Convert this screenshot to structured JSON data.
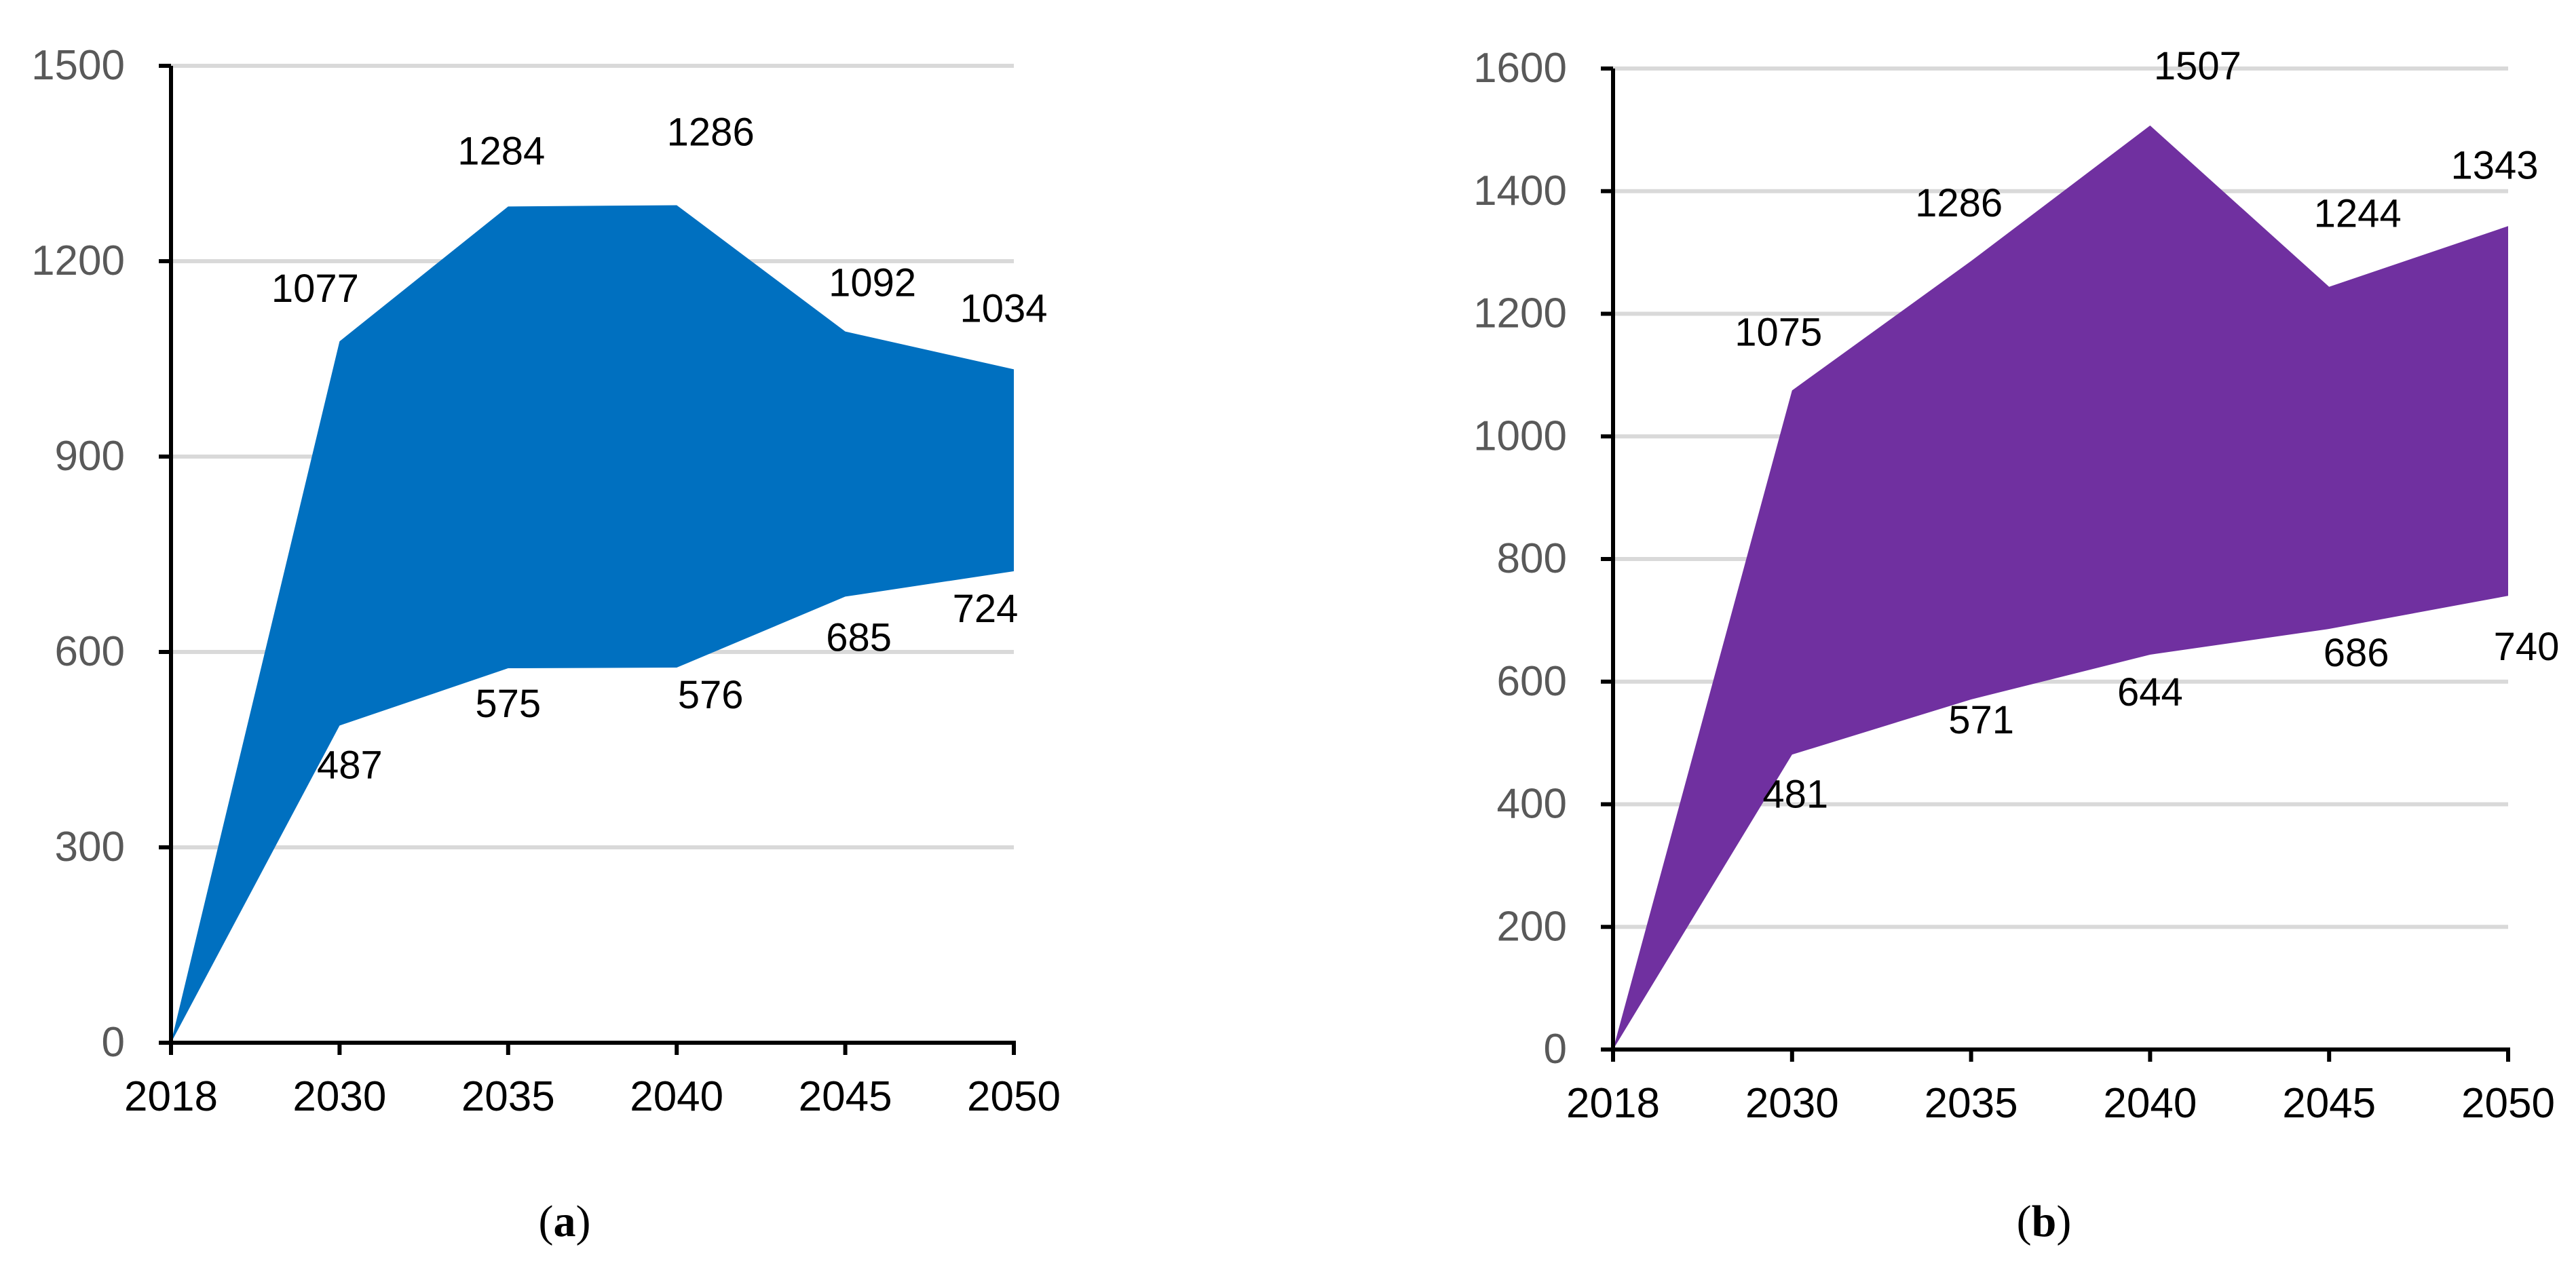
{
  "chart_data": [
    {
      "type": "area",
      "panel_label": "a",
      "caption_open": "(",
      "caption_close": ")",
      "categories": [
        "2018",
        "2030",
        "2035",
        "2040",
        "2045",
        "2050"
      ],
      "series": [
        {
          "name": "upper",
          "values": [
            0,
            1077,
            1284,
            1286,
            1092,
            1034
          ]
        },
        {
          "name": "lower",
          "values": [
            0,
            487,
            575,
            576,
            685,
            724
          ]
        }
      ],
      "ylim": [
        0,
        1500
      ],
      "yticks": [
        0,
        300,
        600,
        900,
        1200,
        1500
      ],
      "fill_color": "#0070c0",
      "title": "",
      "xlabel": "",
      "ylabel": ""
    },
    {
      "type": "area",
      "panel_label": "b",
      "caption_open": "(",
      "caption_close": ")",
      "categories": [
        "2018",
        "2030",
        "2035",
        "2040",
        "2045",
        "2050"
      ],
      "series": [
        {
          "name": "upper",
          "values": [
            0,
            1075,
            1286,
            1507,
            1244,
            1343
          ]
        },
        {
          "name": "lower",
          "values": [
            0,
            481,
            571,
            644,
            686,
            740
          ]
        }
      ],
      "ylim": [
        0,
        1600
      ],
      "yticks": [
        0,
        200,
        400,
        600,
        800,
        1000,
        1200,
        1400,
        1600
      ],
      "fill_color": "#7030a0",
      "title": "",
      "xlabel": "",
      "ylabel": ""
    }
  ]
}
